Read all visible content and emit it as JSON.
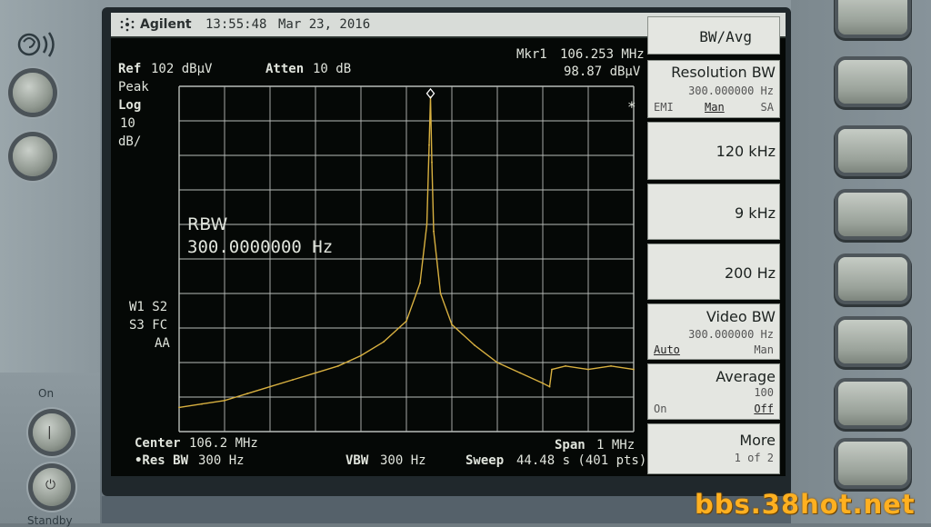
{
  "header": {
    "brand": "Agilent",
    "time": "13:55:48",
    "date": "Mar 23, 2016"
  },
  "marker": {
    "label": "Mkr1",
    "freq": "106.253 MHz",
    "level": "98.87 dBµV"
  },
  "display": {
    "ref_label": "Ref",
    "ref_value": "102 dBµV",
    "atten_label": "Atten",
    "atten_value": "10 dB",
    "detector": "Peak",
    "scale_type": "Log",
    "scale_value": "10",
    "scale_unit": "dB/",
    "trace_flags_1": "W1 S2",
    "trace_flags_2": "S3 FC",
    "trace_flags_3": "AA",
    "star": "*",
    "rbw_title": "RBW",
    "rbw_value": "300.0000000  Hz"
  },
  "footer": {
    "center_label": "Center",
    "center_value": "106.2 MHz",
    "res_bw_label": "•Res BW",
    "res_bw_value": "300 Hz",
    "vbw_label": "VBW",
    "vbw_value": "300 Hz",
    "span_label": "Span",
    "span_value": "1 MHz",
    "sweep_label": "Sweep",
    "sweep_value": "44.48 s (401 pts)"
  },
  "softkeys": {
    "menu_title": "BW/Avg",
    "res_bw": {
      "label": "Resolution BW",
      "value": "300.000000  Hz",
      "opt1": "EMI",
      "opt2": "Man",
      "opt3": "SA"
    },
    "k120": "120 kHz",
    "k9": "9 kHz",
    "k200": "200 Hz",
    "video_bw": {
      "label": "Video BW",
      "value": "300.000000  Hz",
      "opt1": "Auto",
      "opt2": "Man"
    },
    "average": {
      "label": "Average",
      "value": "100",
      "opt1": "On",
      "opt2": "Off"
    },
    "more": {
      "label": "More",
      "page": "1 of 2"
    }
  },
  "panel": {
    "on_label": "On",
    "standby_label": "Standby"
  },
  "watermark": "bbs.38hot.net",
  "chart_data": {
    "type": "line",
    "x_unit": "MHz",
    "xlim": [
      105.7,
      106.7
    ],
    "ylim": [
      2,
      102
    ],
    "y_unit": "dBµV",
    "grid": true,
    "trace_color": "#d8b040",
    "series": [
      {
        "x": [
          105.7,
          105.75,
          105.8,
          105.85,
          105.9,
          105.95,
          106.0,
          106.05,
          106.1,
          106.15,
          106.2,
          106.23,
          106.245,
          106.25,
          106.253,
          106.256,
          106.26,
          106.275,
          106.3,
          106.35,
          106.4,
          106.45,
          106.5,
          106.515,
          106.52,
          106.55,
          106.6,
          106.65,
          106.7
        ],
        "y": [
          9,
          10,
          11,
          13,
          15,
          17,
          19,
          21,
          24,
          28,
          34,
          45,
          62,
          85,
          98.87,
          80,
          60,
          42,
          33,
          27,
          22,
          19,
          16,
          15,
          20,
          21,
          20,
          21,
          20
        ]
      }
    ],
    "marker": {
      "x": 106.253,
      "y": 98.87
    }
  }
}
